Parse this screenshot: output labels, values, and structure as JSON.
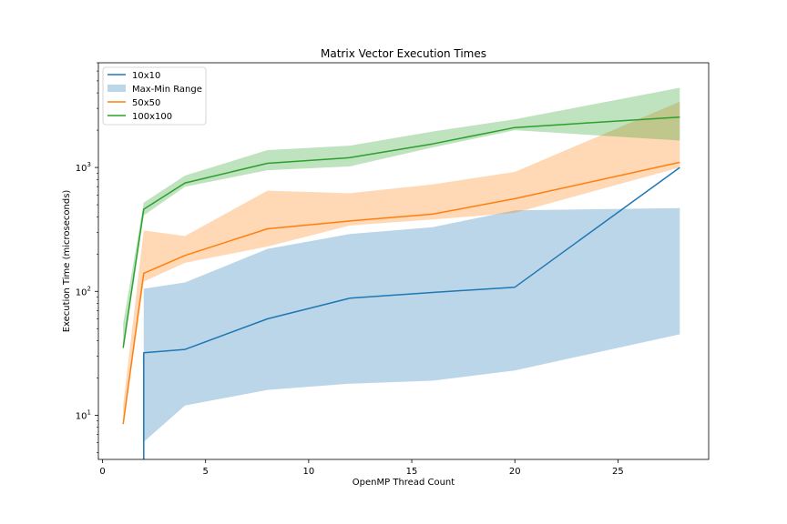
{
  "chart_data": {
    "type": "line",
    "title": "Matrix Vector Execution Times",
    "xlabel": "OpenMP Thread Count",
    "ylabel": "Execution Time (microseconds)",
    "xlim": [
      -0.2,
      29.4
    ],
    "ylim": [
      4.4,
      7000
    ],
    "yscale": "log",
    "xticks": [
      0,
      5,
      10,
      15,
      20,
      25
    ],
    "yticks": [
      {
        "value": 10,
        "label": "10"
      },
      {
        "value": 100,
        "label": "10"
      },
      {
        "value": 1000,
        "label": "10"
      }
    ],
    "ytick_exponents": [
      "1",
      "2",
      "3"
    ],
    "grid": false,
    "legend_position": "top-left",
    "legend": [
      "10x10",
      "Max-Min Range",
      "50x50",
      "100x100"
    ],
    "series": [
      {
        "name": "10x10",
        "color": "#1f77b4",
        "x": [
          2,
          2,
          4,
          8,
          12,
          16,
          20,
          28
        ],
        "y": [
          4.2,
          32,
          34,
          60,
          88,
          98,
          108,
          1000
        ],
        "band_x": [
          2,
          4,
          8,
          12,
          16,
          20,
          28
        ],
        "band_min": [
          6.1,
          12,
          16,
          18,
          19,
          23,
          45
        ],
        "band_max": [
          105,
          118,
          220,
          290,
          330,
          450,
          470
        ]
      },
      {
        "name": "50x50",
        "color": "#ff7f0e",
        "x": [
          1,
          2,
          4,
          8,
          12,
          16,
          20,
          28
        ],
        "y": [
          8.5,
          140,
          195,
          320,
          370,
          420,
          560,
          1100
        ],
        "band_x": [
          1,
          2,
          4,
          8,
          12,
          16,
          20,
          28
        ],
        "band_min": [
          8.5,
          120,
          170,
          230,
          340,
          380,
          430,
          1000
        ],
        "band_max": [
          12,
          310,
          280,
          650,
          620,
          730,
          920,
          3400
        ]
      },
      {
        "name": "100x100",
        "color": "#2ca02c",
        "x": [
          1,
          2,
          4,
          8,
          12,
          16,
          20,
          28
        ],
        "y": [
          35,
          460,
          750,
          1080,
          1200,
          1550,
          2100,
          2550
        ],
        "band_x": [
          1,
          2,
          4,
          8,
          12,
          16,
          20,
          28
        ],
        "band_min": [
          35,
          410,
          700,
          950,
          1020,
          1450,
          2000,
          1650
        ],
        "band_max": [
          55,
          520,
          860,
          1380,
          1500,
          1950,
          2450,
          4400
        ]
      }
    ],
    "band_color": "#1f77b4",
    "band_alpha": 0.3
  }
}
